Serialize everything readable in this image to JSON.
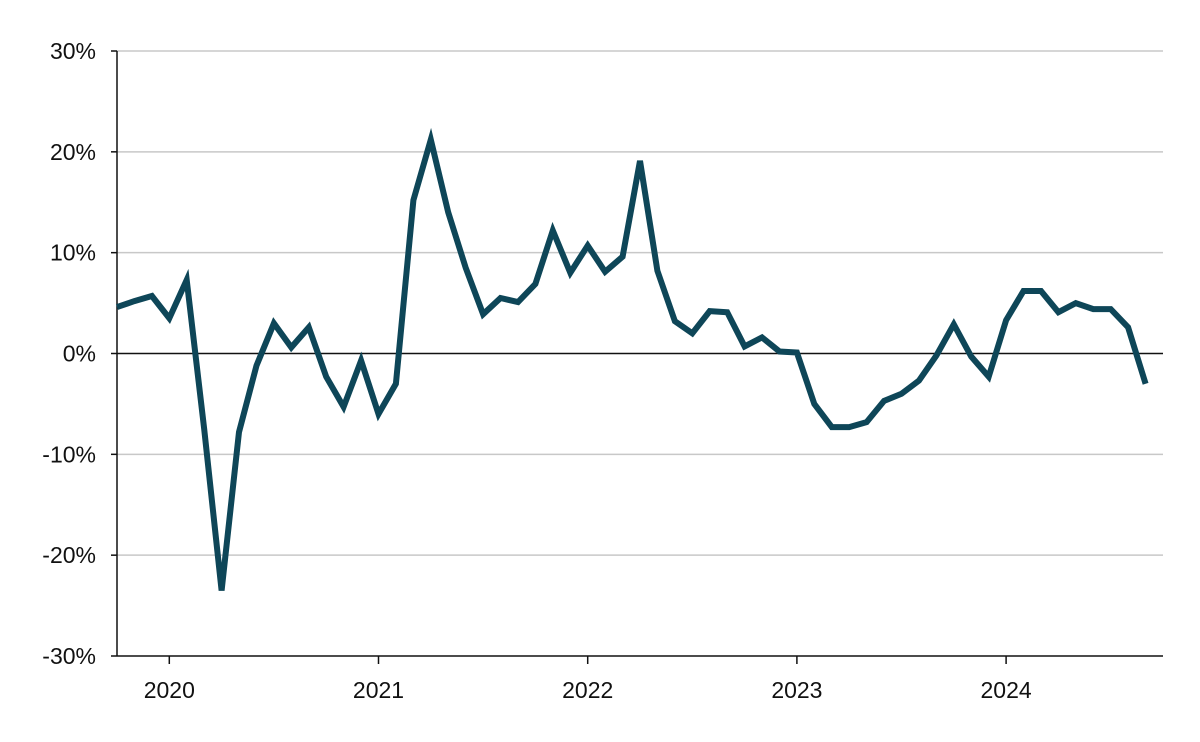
{
  "chart_data": {
    "type": "line",
    "title": "",
    "xlabel": "",
    "ylabel": "",
    "grid": true,
    "ylim": [
      -30,
      30
    ],
    "y_ticks": [
      {
        "value": 30,
        "label": "30%"
      },
      {
        "value": 20,
        "label": "20%"
      },
      {
        "value": 10,
        "label": "10%"
      },
      {
        "value": 0,
        "label": "0%"
      },
      {
        "value": -10,
        "label": "-10%"
      },
      {
        "value": -20,
        "label": "-20%"
      },
      {
        "value": -30,
        "label": "-30%"
      }
    ],
    "xlim": [
      "2019-10",
      "2024-10"
    ],
    "x_ticks": [
      {
        "value": "2020-01",
        "label": "2020"
      },
      {
        "value": "2021-01",
        "label": "2021"
      },
      {
        "value": "2022-01",
        "label": "2022"
      },
      {
        "value": "2023-01",
        "label": "2023"
      },
      {
        "value": "2024-01",
        "label": "2024"
      }
    ],
    "line_color": "#0e4658",
    "series": [
      {
        "x": [
          "2019-10",
          "2019-11",
          "2019-12",
          "2020-01",
          "2020-02",
          "2020-03",
          "2020-04",
          "2020-05",
          "2020-06",
          "2020-07",
          "2020-08",
          "2020-09",
          "2020-10",
          "2020-11",
          "2020-12",
          "2021-01",
          "2021-02",
          "2021-03",
          "2021-04",
          "2021-05",
          "2021-06",
          "2021-07",
          "2021-08",
          "2021-09",
          "2021-10",
          "2021-11",
          "2021-12",
          "2022-01",
          "2022-02",
          "2022-03",
          "2022-04",
          "2022-05",
          "2022-06",
          "2022-07",
          "2022-08",
          "2022-09",
          "2022-10",
          "2022-11",
          "2022-12",
          "2023-01",
          "2023-02",
          "2023-03",
          "2023-04",
          "2023-05",
          "2023-06",
          "2023-07",
          "2023-08",
          "2023-09",
          "2023-10",
          "2023-11",
          "2023-12",
          "2024-01",
          "2024-02",
          "2024-03",
          "2024-04",
          "2024-05",
          "2024-06",
          "2024-07",
          "2024-08",
          "2024-09",
          "2024-10"
        ],
        "values": [
          4.6,
          5.2,
          5.7,
          3.5,
          7.3,
          -7.5,
          -23.5,
          -7.8,
          -1.2,
          3.0,
          0.6,
          2.6,
          -2.3,
          -5.3,
          -0.7,
          -6.0,
          -3.0,
          15.2,
          21.2,
          14.0,
          8.5,
          3.9,
          5.5,
          5.1,
          6.9,
          12.2,
          8.0,
          10.7,
          8.1,
          9.6,
          19.1,
          8.2,
          3.2,
          2.0,
          4.2,
          4.1,
          0.7,
          1.6,
          0.2,
          0.1,
          -5.0,
          -7.3,
          -7.3,
          -6.8,
          -4.7,
          -4.0,
          -2.7,
          -0.2,
          2.9,
          -0.3,
          -2.3,
          3.3,
          6.2,
          6.2,
          4.1,
          5.0,
          4.4,
          4.4,
          2.6,
          -3.0,
          null
        ]
      }
    ]
  }
}
